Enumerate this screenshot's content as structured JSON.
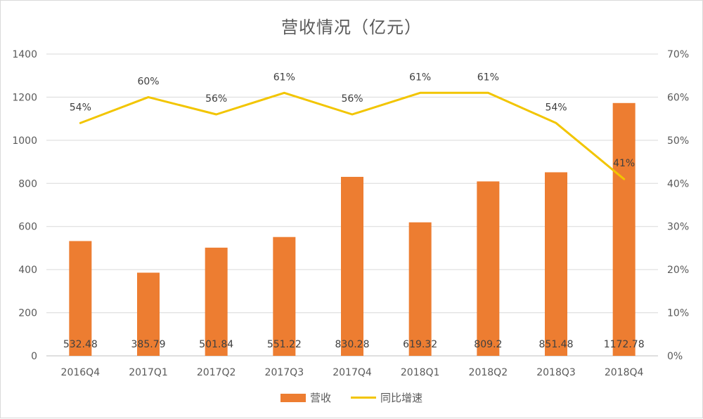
{
  "chart_data": {
    "type": "bar",
    "title": "营收情况（亿元）",
    "categories": [
      "2016Q4",
      "2017Q1",
      "2017Q2",
      "2017Q3",
      "2017Q4",
      "2018Q1",
      "2018Q2",
      "2018Q3",
      "2018Q4"
    ],
    "series": [
      {
        "name": "营收",
        "type": "bar",
        "axis": "left",
        "color": "#ED7D31",
        "values": [
          532.48,
          385.79,
          501.84,
          551.22,
          830.28,
          619.32,
          809.2,
          851.48,
          1172.78
        ],
        "labels": [
          "532.48",
          "385.79",
          "501.84",
          "551.22",
          "830.28",
          "619.32",
          "809.2",
          "851.48",
          "1172.78"
        ]
      },
      {
        "name": "同比增速",
        "type": "line",
        "axis": "right",
        "color": "#F2C500",
        "values": [
          54,
          60,
          56,
          61,
          56,
          61,
          61,
          54,
          41
        ],
        "labels": [
          "54%",
          "60%",
          "56%",
          "61%",
          "56%",
          "61%",
          "61%",
          "54%",
          "41%"
        ]
      }
    ],
    "y_left": {
      "min": 0,
      "max": 1400,
      "step": 200,
      "ticks": [
        "0",
        "200",
        "400",
        "600",
        "800",
        "1000",
        "1200",
        "1400"
      ]
    },
    "y_right": {
      "min": 0,
      "max": 70,
      "step": 10,
      "ticks": [
        "0%",
        "10%",
        "20%",
        "30%",
        "40%",
        "50%",
        "60%",
        "70%"
      ]
    },
    "grid": true,
    "legend_position": "bottom-center"
  }
}
